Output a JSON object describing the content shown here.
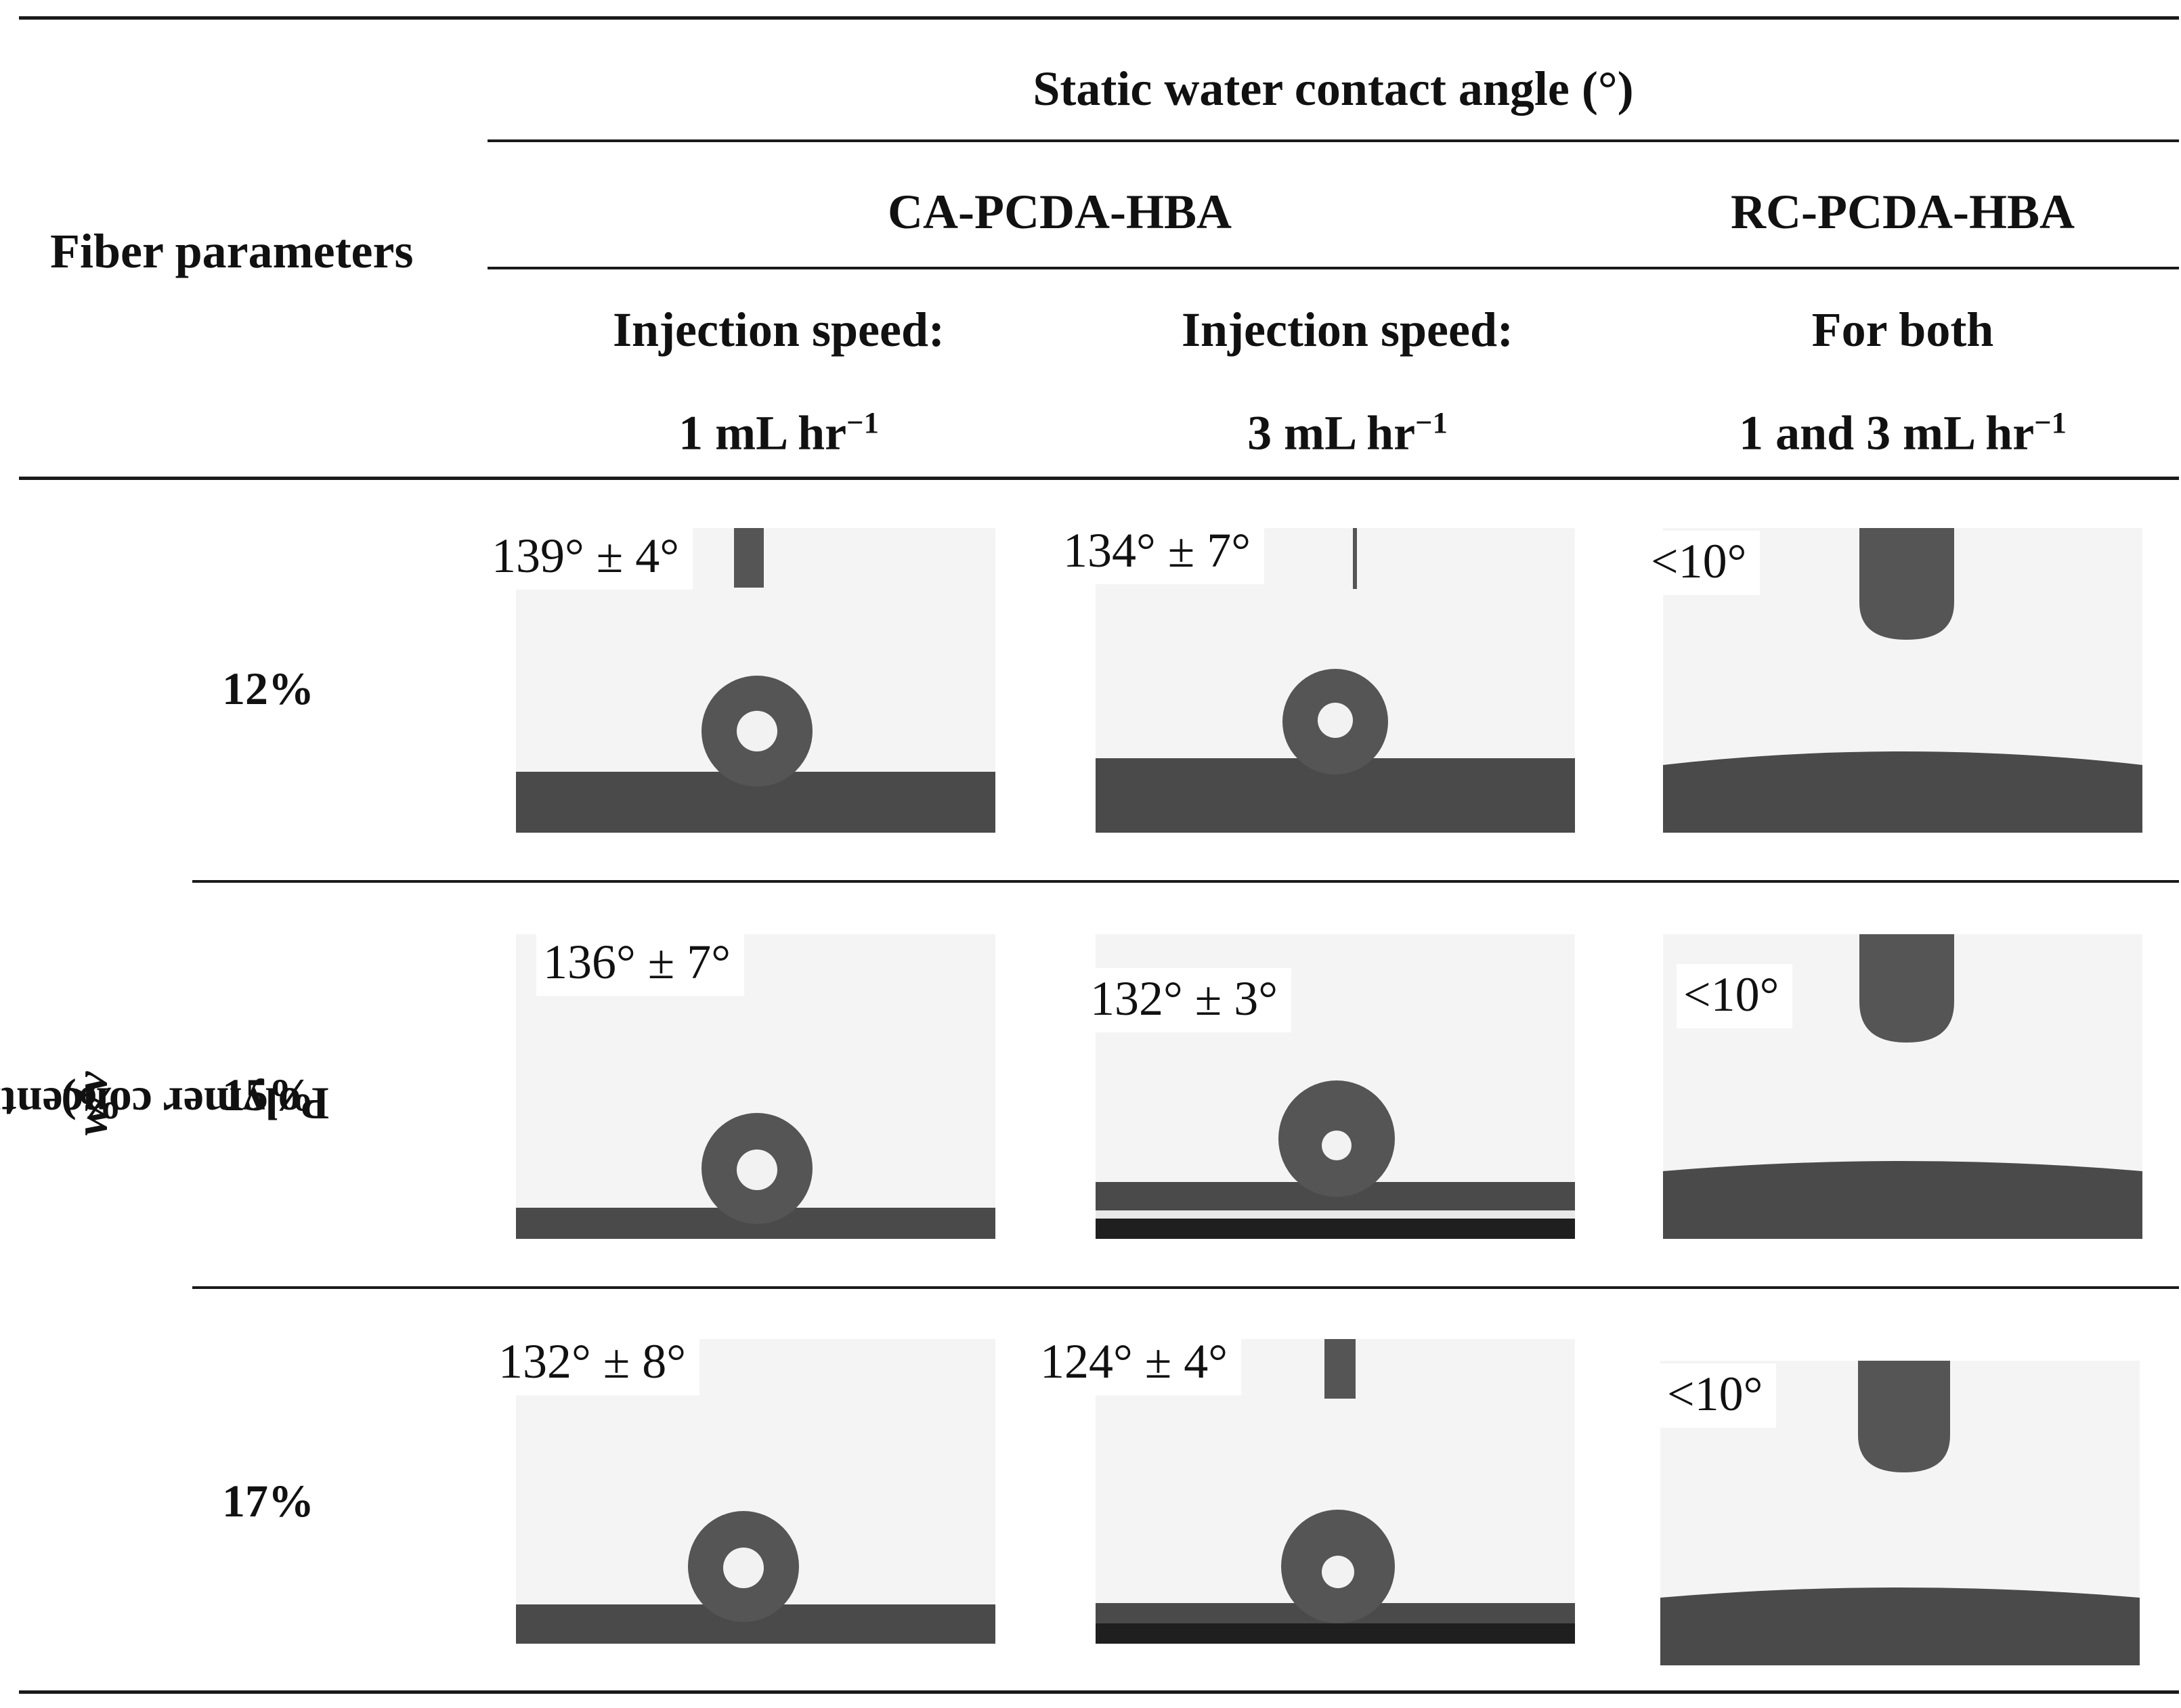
{
  "table": {
    "corner_header": "Fiber parameters",
    "group_header": "Static water contact angle (°)",
    "material_headers": [
      "CA-PCDA-HBA",
      "RC-PCDA-HBA"
    ],
    "columns": [
      {
        "line1": "Injection speed:",
        "line2": "1 mL hr",
        "sup": "−1"
      },
      {
        "line1": "Injection speed:",
        "line2": "3 mL hr",
        "sup": "−1"
      },
      {
        "line1": "For both",
        "line2": "1 and 3 mL hr",
        "sup": "−1"
      }
    ],
    "row_axis_label": {
      "prefix": "Polymer concentration (",
      "italic": "w/v",
      "suffix": " %)"
    },
    "rows": [
      {
        "label": "12%",
        "angles": [
          "139° ± 4°",
          "134° ± 7°",
          "<10°"
        ]
      },
      {
        "label": "15%",
        "angles": [
          "136° ± 7°",
          "132° ± 3°",
          "<10°"
        ]
      },
      {
        "label": "17%",
        "angles": [
          "132° ± 8°",
          "124° ± 4°",
          "<10°"
        ]
      }
    ]
  },
  "colors": {
    "rule": "#1a1a1a",
    "substrate": "#4a4a4a",
    "background_photo": "#f4f4f4",
    "droplet": "#555555"
  }
}
